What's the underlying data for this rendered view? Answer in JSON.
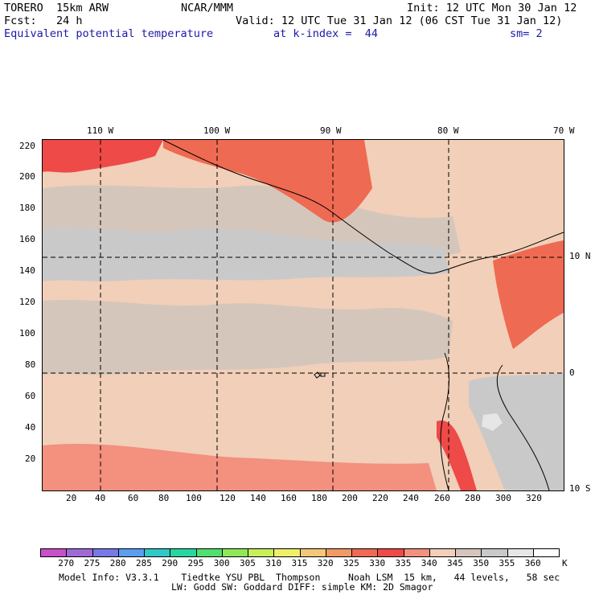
{
  "header": {
    "model": "TORERO  15km ARW",
    "org": "NCAR/MMM",
    "init": "Init: 12 UTC Mon 30 Jan 12",
    "fcst": "Fcst:   24 h",
    "valid": "Valid: 12 UTC Tue 31 Jan 12 (06 CST Tue 31 Jan 12)",
    "field": "Equivalent potential temperature",
    "kindex": "at k-index =  44",
    "smooth": "sm= 2"
  },
  "map": {
    "lon_labels": [
      "110 W",
      "100 W",
      "90 W",
      "80 W",
      "70 W"
    ],
    "lat_labels": [
      "10 N",
      "0",
      "10 S"
    ],
    "y_ticks": [
      "220",
      "200",
      "180",
      "160",
      "140",
      "120",
      "100",
      "80",
      "60",
      "40",
      "20"
    ],
    "x_ticks": [
      "20",
      "40",
      "60",
      "80",
      "100",
      "120",
      "140",
      "160",
      "180",
      "200",
      "220",
      "240",
      "260",
      "280",
      "300",
      "320"
    ]
  },
  "legend": {
    "labels": [
      "270",
      "275",
      "280",
      "285",
      "290",
      "295",
      "300",
      "305",
      "310",
      "315",
      "320",
      "325",
      "330",
      "335",
      "340",
      "345",
      "350",
      "355",
      "360"
    ],
    "unit": "K",
    "colors": [
      "#c850c8",
      "#9f6ad6",
      "#7878e6",
      "#5a9ef0",
      "#30c8c8",
      "#28d6a0",
      "#50e070",
      "#8fe858",
      "#c8f058",
      "#f0f068",
      "#f5c878",
      "#f29a64",
      "#ef6a52",
      "#ee4a48",
      "#f3907e",
      "#f1cfb8",
      "#d5c6bc",
      "#c9c9c9",
      "#e6e6e6",
      "#ffffff"
    ]
  },
  "footer": {
    "line1": "Model Info: V3.3.1    Tiedtke YSU PBL  Thompson     Noah LSM  15 km,   44 levels,   58 sec",
    "line2": "LW: Godd SW: Goddard DIFF: simple KM: 2D Smagor"
  }
}
